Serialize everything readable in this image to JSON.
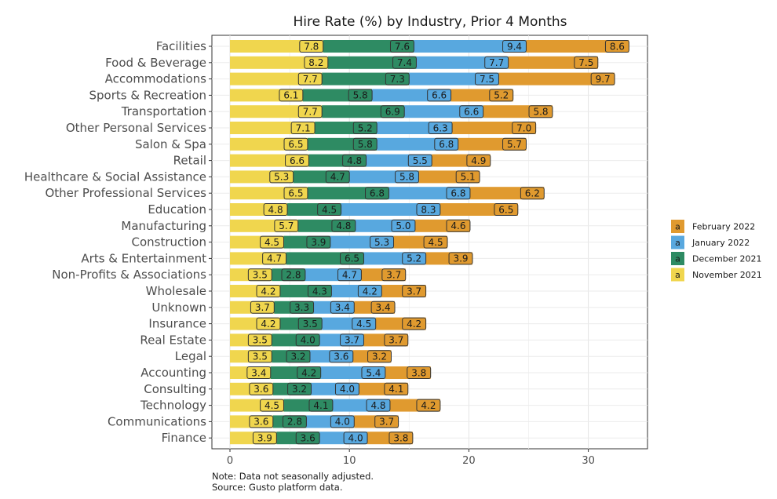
{
  "chart_data": {
    "type": "bar",
    "stacked": true,
    "orientation": "horizontal",
    "title": "Hire Rate (%) by Industry, Prior 4 Months",
    "xlabel": "",
    "ylabel": "",
    "xlim": [
      0,
      34
    ],
    "x_ticks": [
      "0",
      "10",
      "20",
      "30"
    ],
    "grid": true,
    "legend_position": "right",
    "categories": [
      "Facilities",
      "Food & Beverage",
      "Accommodations",
      "Sports & Recreation",
      "Transportation",
      "Other Personal Services",
      "Salon & Spa",
      "Retail",
      "Healthcare & Social Assistance",
      "Other Professional Services",
      "Education",
      "Manufacturing",
      "Construction",
      "Arts & Entertainment",
      "Non-Profits & Associations",
      "Wholesale",
      "Unknown",
      "Insurance",
      "Real Estate",
      "Legal",
      "Accounting",
      "Consulting",
      "Technology",
      "Communications",
      "Finance"
    ],
    "series": [
      {
        "name": "November 2021",
        "color": "#F0D64E",
        "values": [
          7.8,
          8.2,
          7.7,
          6.1,
          7.7,
          7.1,
          6.5,
          6.6,
          5.3,
          6.5,
          4.8,
          5.7,
          4.5,
          4.7,
          3.5,
          4.2,
          3.7,
          4.2,
          3.5,
          3.5,
          3.4,
          3.6,
          4.5,
          3.6,
          3.9
        ]
      },
      {
        "name": "December 2021",
        "color": "#2E8B63",
        "values": [
          7.6,
          7.4,
          7.3,
          5.8,
          6.9,
          5.2,
          5.8,
          4.8,
          4.7,
          6.8,
          4.5,
          4.8,
          3.9,
          6.5,
          2.8,
          4.3,
          3.3,
          3.5,
          4.0,
          3.2,
          4.2,
          3.2,
          4.1,
          2.8,
          3.6
        ]
      },
      {
        "name": "January 2022",
        "color": "#58A8DF",
        "values": [
          9.4,
          7.7,
          7.5,
          6.6,
          6.6,
          6.3,
          6.8,
          5.5,
          5.8,
          6.8,
          8.3,
          5.0,
          5.3,
          5.2,
          4.7,
          4.2,
          3.4,
          4.5,
          3.7,
          3.6,
          5.4,
          4.0,
          4.8,
          4.0,
          4.0
        ]
      },
      {
        "name": "February 2022",
        "color": "#E09A2F",
        "values": [
          8.6,
          7.5,
          9.7,
          5.2,
          5.8,
          7.0,
          5.7,
          4.9,
          5.1,
          6.2,
          6.5,
          4.6,
          4.5,
          3.9,
          3.7,
          3.7,
          3.4,
          4.2,
          3.7,
          3.2,
          3.8,
          4.1,
          4.2,
          3.7,
          3.8
        ]
      }
    ],
    "legend_key_glyph": "a",
    "legend_order": [
      "February 2022",
      "January 2022",
      "December 2021",
      "November 2021"
    ],
    "notes": [
      "Note: Data not seasonally adjusted.",
      "Source: Gusto platform data."
    ]
  }
}
